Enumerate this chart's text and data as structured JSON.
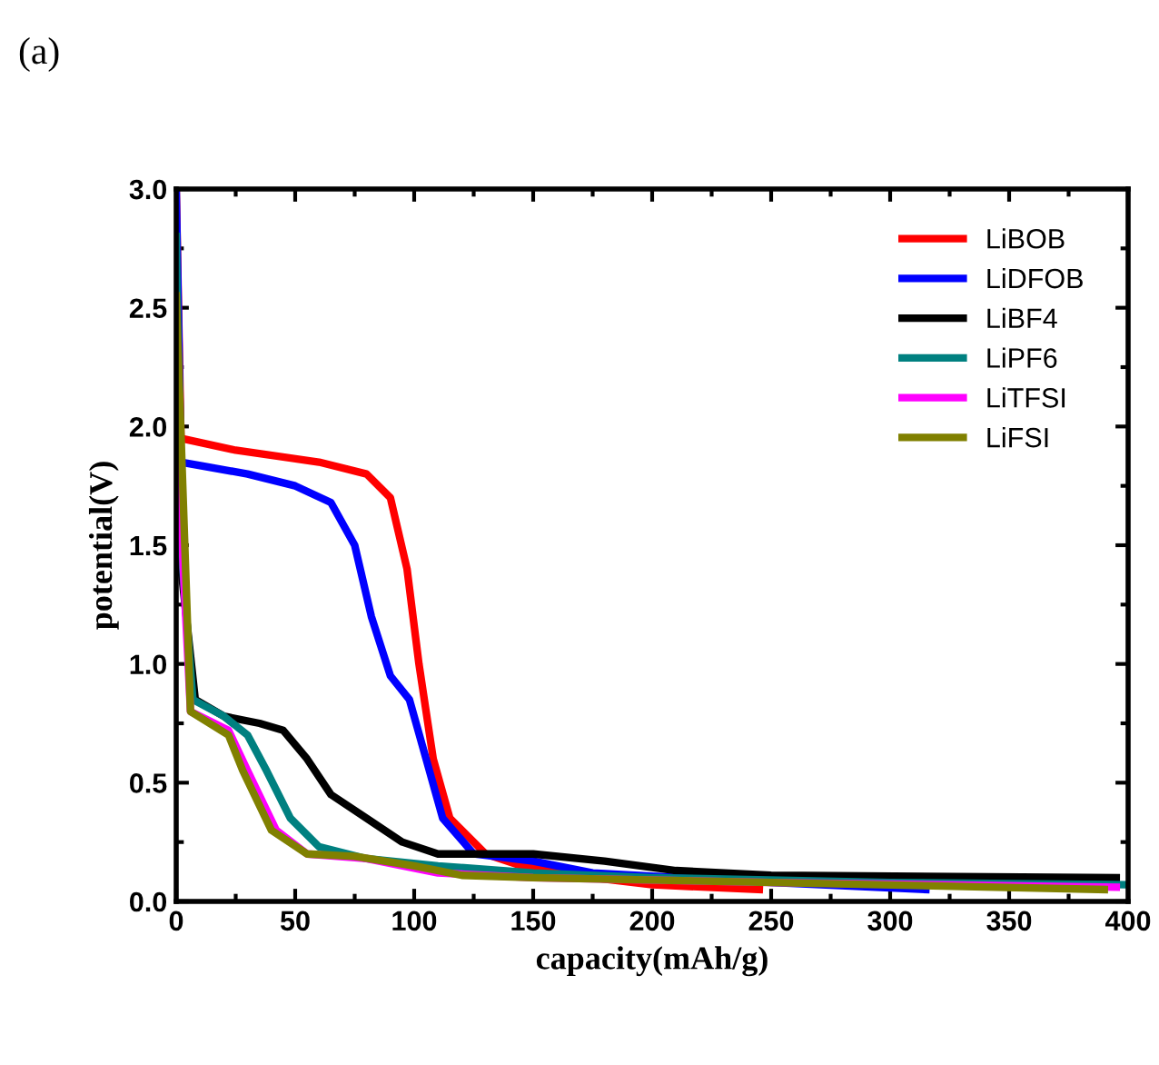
{
  "chart_data": {
    "type": "line",
    "xlabel": "capacity(mAh/g)",
    "ylabel": "potential(V)",
    "annotations": [
      "(a)"
    ],
    "xlim": [
      0,
      400
    ],
    "ylim": [
      0,
      3.0
    ],
    "xticks": [
      0,
      50,
      100,
      150,
      200,
      250,
      300,
      350,
      400
    ],
    "yticks": [
      {
        "value": 0,
        "label": "0.0"
      },
      0.5,
      {
        "value": 1,
        "label": "1.0"
      },
      1.5,
      {
        "value": 2,
        "label": "2.0"
      },
      2.5,
      {
        "value": 3,
        "label": "3.0"
      }
    ],
    "grid": false,
    "legend": "top right",
    "marker": "none",
    "line_style": "solid",
    "series": [
      {
        "name": "LiBOB",
        "color": "#ff0000",
        "x": [
          0,
          2,
          25,
          60,
          80,
          90,
          97,
          102,
          108,
          115,
          130,
          145,
          175,
          200,
          245
        ],
        "values": [
          3.0,
          1.95,
          1.9,
          1.85,
          1.8,
          1.7,
          1.4,
          1.0,
          0.6,
          0.35,
          0.2,
          0.15,
          0.1,
          0.07,
          0.05
        ]
      },
      {
        "name": "LiDFOB",
        "color": "#0000ff",
        "x": [
          0,
          2,
          30,
          50,
          65,
          75,
          82,
          90,
          98,
          105,
          112,
          125,
          150,
          175,
          250,
          315
        ],
        "values": [
          3.0,
          1.85,
          1.8,
          1.75,
          1.68,
          1.5,
          1.2,
          0.95,
          0.85,
          0.6,
          0.35,
          0.2,
          0.17,
          0.12,
          0.08,
          0.05
        ]
      },
      {
        "name": "LiBF4",
        "color": "#000000",
        "x": [
          0,
          1,
          8,
          20,
          35,
          45,
          55,
          65,
          80,
          95,
          110,
          150,
          180,
          210,
          250,
          395
        ],
        "values": [
          2.5,
          1.5,
          0.85,
          0.78,
          0.75,
          0.72,
          0.6,
          0.45,
          0.35,
          0.25,
          0.2,
          0.2,
          0.17,
          0.13,
          0.11,
          0.1
        ]
      },
      {
        "name": "LiPF6",
        "color": "#008080",
        "x": [
          0,
          2,
          7,
          20,
          30,
          38,
          48,
          60,
          80,
          110,
          150,
          200,
          300,
          400
        ],
        "values": [
          2.8,
          1.5,
          0.85,
          0.78,
          0.7,
          0.55,
          0.35,
          0.23,
          0.18,
          0.15,
          0.12,
          0.1,
          0.08,
          0.07
        ]
      },
      {
        "name": "LiTFSI",
        "color": "#ff00ff",
        "x": [
          0,
          6,
          22,
          30,
          42,
          55,
          80,
          110,
          150,
          250,
          395
        ],
        "values": [
          2.0,
          0.8,
          0.72,
          0.55,
          0.3,
          0.2,
          0.18,
          0.12,
          0.1,
          0.08,
          0.06
        ]
      },
      {
        "name": "LiFSI",
        "color": "#808000",
        "x": [
          0,
          6,
          22,
          28,
          40,
          55,
          75,
          100,
          120,
          150,
          250,
          390
        ],
        "values": [
          2.55,
          0.8,
          0.7,
          0.55,
          0.3,
          0.2,
          0.19,
          0.15,
          0.11,
          0.1,
          0.08,
          0.05
        ]
      }
    ]
  }
}
